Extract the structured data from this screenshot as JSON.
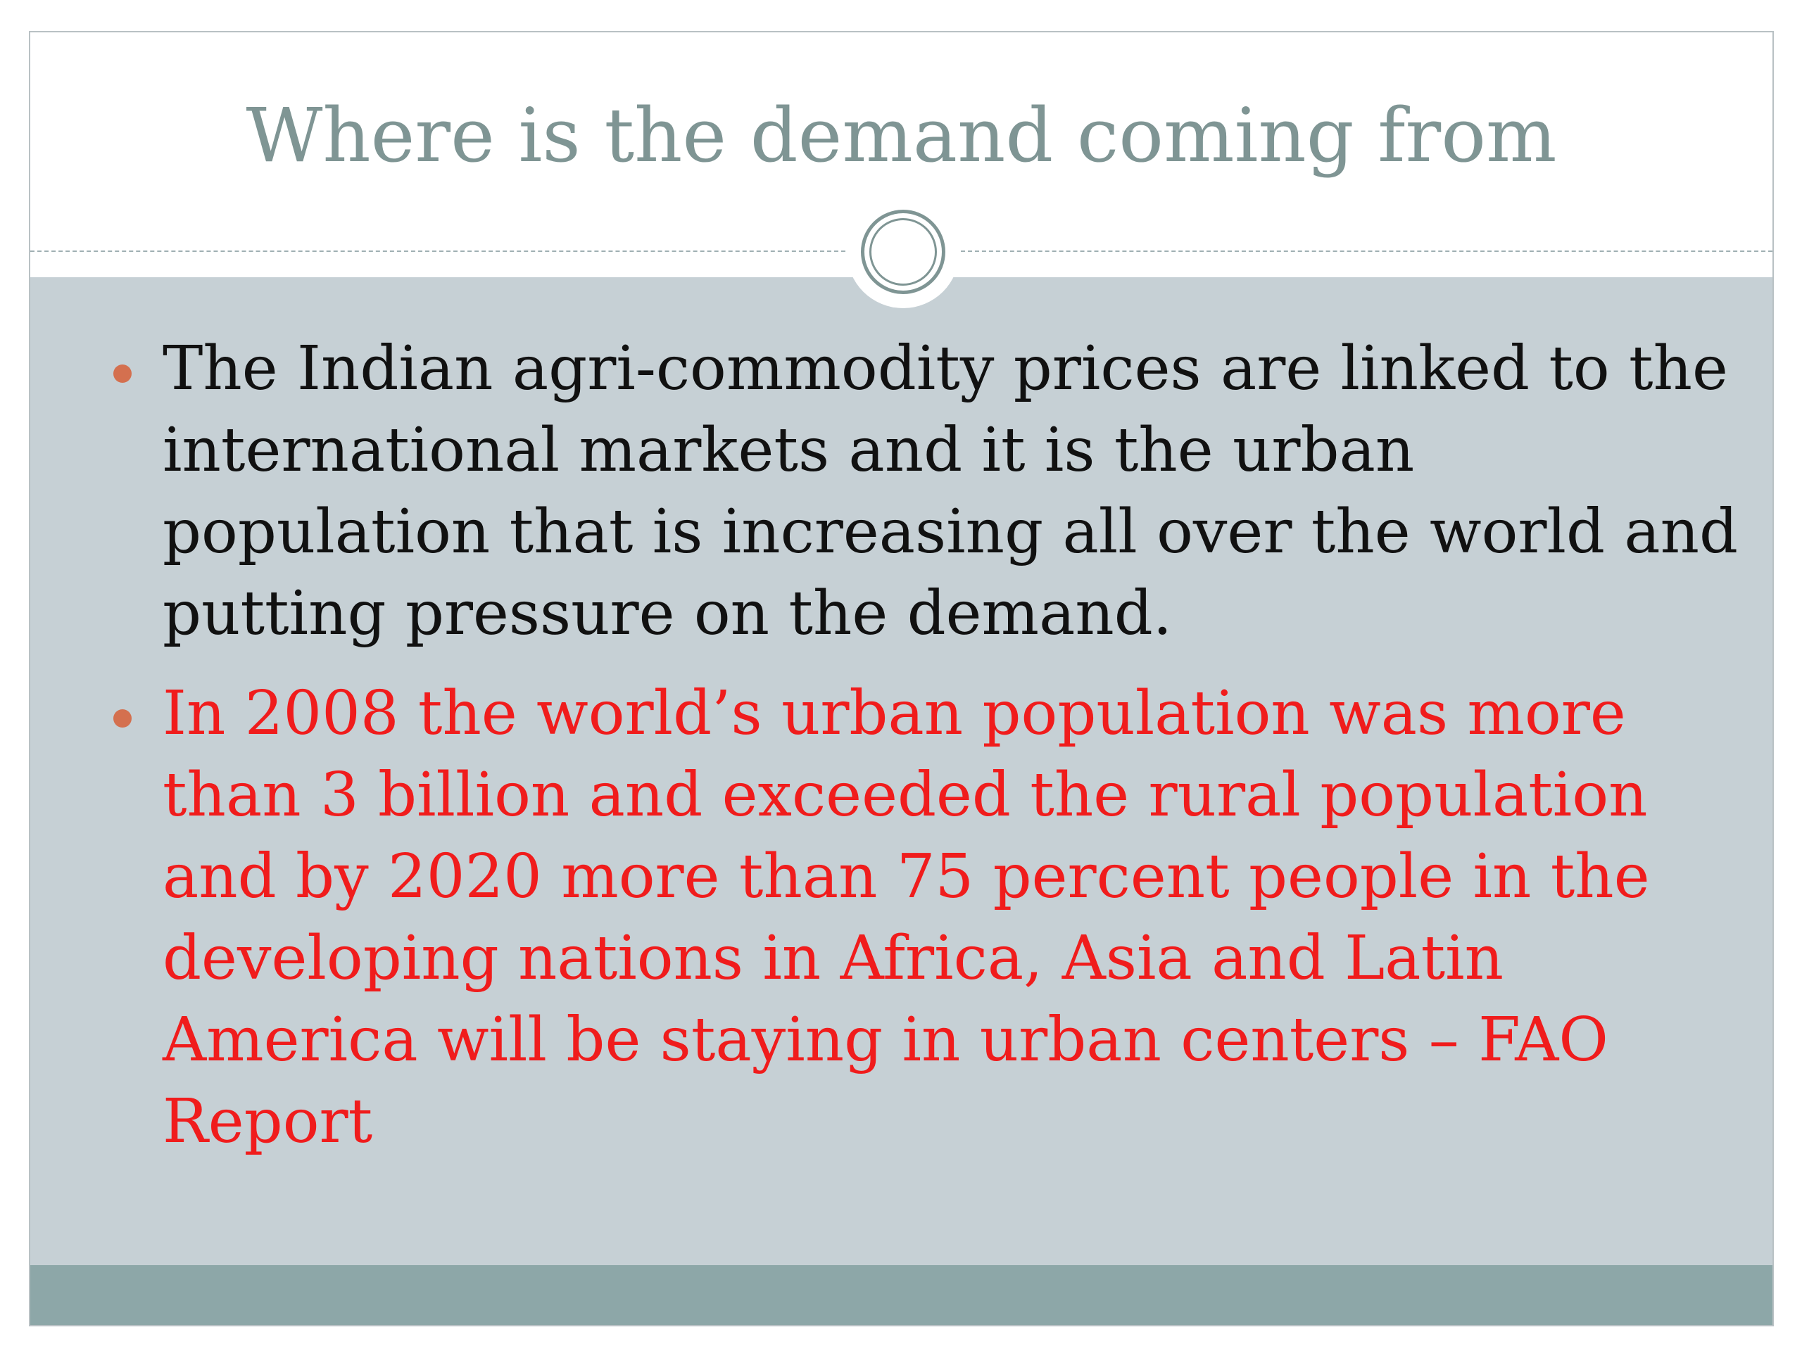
{
  "slide": {
    "title": "Where is the demand coming from",
    "bullets": [
      {
        "text": "The Indian agri-commodity prices are linked to the international markets and it is the urban population that is increasing all over the world and putting pressure on the demand.",
        "color": "#111111"
      },
      {
        "text": "In 2008 the world’s urban population was more than 3 billion and exceeded the rural population and by 2020 more than 75 percent people in the developing nations in Africa, Asia and Latin America will be staying in urban centers – FAO Report",
        "color": "#f01c1c"
      }
    ]
  },
  "colors": {
    "title": "#7f9594",
    "content_background": "#c6d0d5",
    "footer_bar": "#8da7a8",
    "bullet_marker": "#d4704f"
  },
  "icons": {
    "ornament": "double-ring-circle-icon",
    "bullet": "filled-circle-bullet"
  }
}
